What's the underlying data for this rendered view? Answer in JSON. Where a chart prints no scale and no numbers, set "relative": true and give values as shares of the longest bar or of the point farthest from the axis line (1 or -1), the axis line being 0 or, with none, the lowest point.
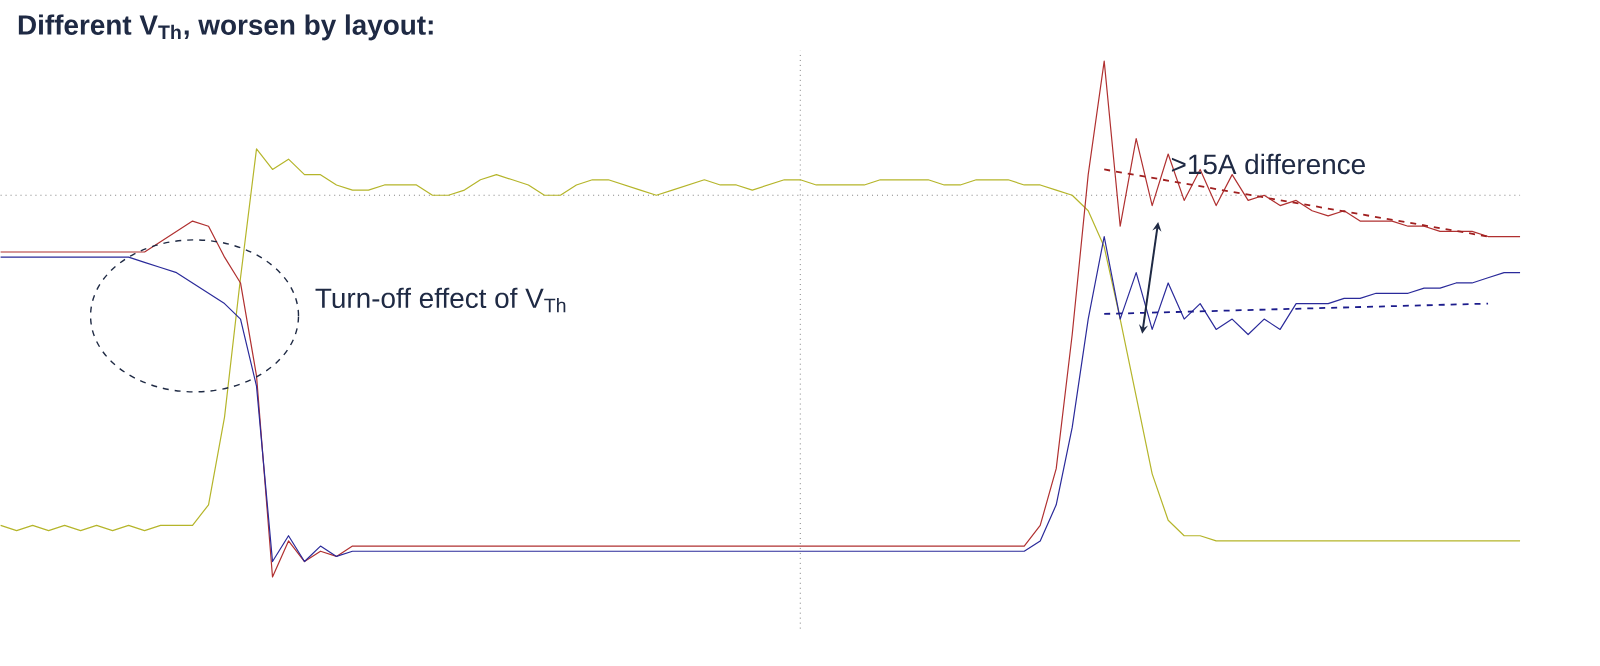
{
  "chart_data": {
    "type": "line",
    "relative": true,
    "title": "Different V$_{Th}$, worsen by layout:",
    "annotations": [
      "Turn-off effect of V$_{Th}$",
      ">15A difference"
    ],
    "categories": [
      null,
      null,
      null,
      null,
      null,
      null,
      null,
      null,
      null,
      null,
      null,
      null,
      null,
      null,
      null,
      null,
      null,
      null,
      null,
      null,
      null,
      null,
      null,
      null,
      null,
      null,
      null,
      null,
      null,
      null,
      null,
      null,
      null,
      null,
      null,
      null,
      null,
      null,
      null,
      null,
      null,
      null,
      null,
      null,
      null,
      null,
      null,
      null,
      null,
      null,
      null,
      null,
      null,
      null,
      null,
      null,
      null,
      null,
      null,
      null,
      null,
      null,
      null,
      null,
      null,
      null,
      null,
      null,
      null,
      null,
      null,
      null,
      null,
      null,
      null,
      null,
      null,
      null,
      null,
      null,
      null,
      null,
      null,
      null,
      null,
      null,
      null,
      null,
      null,
      null,
      null,
      null,
      null,
      null,
      null,
      null
    ],
    "series": [
      {
        "color": "#b5b52a",
        "values": [
          0.1,
          0.09,
          0.1,
          0.09,
          0.1,
          0.09,
          0.1,
          0.09,
          0.1,
          0.09,
          0.1,
          0.1,
          0.1,
          0.14,
          0.31,
          0.58,
          0.83,
          0.79,
          0.81,
          0.78,
          0.78,
          0.76,
          0.75,
          0.75,
          0.76,
          0.76,
          0.76,
          0.74,
          0.74,
          0.75,
          0.77,
          0.78,
          0.77,
          0.76,
          0.74,
          0.74,
          0.76,
          0.77,
          0.77,
          0.76,
          0.75,
          0.74,
          0.75,
          0.76,
          0.77,
          0.76,
          0.76,
          0.75,
          0.76,
          0.77,
          0.77,
          0.76,
          0.76,
          0.76,
          0.76,
          0.77,
          0.77,
          0.77,
          0.77,
          0.76,
          0.76,
          0.77,
          0.77,
          0.77,
          0.76,
          0.76,
          0.75,
          0.74,
          0.71,
          0.64,
          0.5,
          0.35,
          0.2,
          0.11,
          0.08,
          0.08,
          0.07,
          0.07,
          0.07,
          0.07,
          0.07,
          0.07,
          0.07,
          0.07,
          0.07,
          0.07,
          0.07,
          0.07,
          0.07,
          0.07,
          0.07,
          0.07,
          0.07,
          0.07,
          0.07,
          0.07
        ]
      },
      {
        "color": "#b03030",
        "values": [
          0.63,
          0.63,
          0.63,
          0.63,
          0.63,
          0.63,
          0.63,
          0.63,
          0.63,
          0.63,
          0.65,
          0.67,
          0.69,
          0.68,
          0.62,
          0.57,
          0.39,
          0.0,
          0.07,
          0.03,
          0.05,
          0.04,
          0.06,
          0.06,
          0.06,
          0.06,
          0.06,
          0.06,
          0.06,
          0.06,
          0.06,
          0.06,
          0.06,
          0.06,
          0.06,
          0.06,
          0.06,
          0.06,
          0.06,
          0.06,
          0.06,
          0.06,
          0.06,
          0.06,
          0.06,
          0.06,
          0.06,
          0.06,
          0.06,
          0.06,
          0.06,
          0.06,
          0.06,
          0.06,
          0.06,
          0.06,
          0.06,
          0.06,
          0.06,
          0.06,
          0.06,
          0.06,
          0.06,
          0.06,
          0.06,
          0.1,
          0.21,
          0.47,
          0.78,
          1.0,
          0.68,
          0.85,
          0.72,
          0.82,
          0.73,
          0.79,
          0.72,
          0.78,
          0.73,
          0.74,
          0.72,
          0.73,
          0.71,
          0.7,
          0.71,
          0.69,
          0.69,
          0.69,
          0.68,
          0.68,
          0.67,
          0.67,
          0.67,
          0.66,
          0.66,
          0.66
        ]
      },
      {
        "color": "#2a2a9a",
        "values": [
          0.62,
          0.62,
          0.62,
          0.62,
          0.62,
          0.62,
          0.62,
          0.62,
          0.62,
          0.61,
          0.6,
          0.59,
          0.57,
          0.55,
          0.53,
          0.5,
          0.37,
          0.03,
          0.08,
          0.03,
          0.06,
          0.04,
          0.05,
          0.05,
          0.05,
          0.05,
          0.05,
          0.05,
          0.05,
          0.05,
          0.05,
          0.05,
          0.05,
          0.05,
          0.05,
          0.05,
          0.05,
          0.05,
          0.05,
          0.05,
          0.05,
          0.05,
          0.05,
          0.05,
          0.05,
          0.05,
          0.05,
          0.05,
          0.05,
          0.05,
          0.05,
          0.05,
          0.05,
          0.05,
          0.05,
          0.05,
          0.05,
          0.05,
          0.05,
          0.05,
          0.05,
          0.05,
          0.05,
          0.05,
          0.05,
          0.07,
          0.14,
          0.29,
          0.5,
          0.66,
          0.5,
          0.59,
          0.48,
          0.57,
          0.5,
          0.53,
          0.48,
          0.5,
          0.47,
          0.5,
          0.48,
          0.53,
          0.53,
          0.53,
          0.54,
          0.54,
          0.55,
          0.55,
          0.55,
          0.56,
          0.56,
          0.57,
          0.57,
          0.58,
          0.59,
          0.59
        ]
      },
      {
        "type": "line",
        "color": "#a02020",
        "line_style": "dashed",
        "values": [
          null,
          null,
          null,
          null,
          null,
          null,
          null,
          null,
          null,
          null,
          null,
          null,
          null,
          null,
          null,
          null,
          null,
          null,
          null,
          null,
          null,
          null,
          null,
          null,
          null,
          null,
          null,
          null,
          null,
          null,
          null,
          null,
          null,
          null,
          null,
          null,
          null,
          null,
          null,
          null,
          null,
          null,
          null,
          null,
          null,
          null,
          null,
          null,
          null,
          null,
          null,
          null,
          null,
          null,
          null,
          null,
          null,
          null,
          null,
          null,
          null,
          null,
          null,
          null,
          null,
          null,
          null,
          null,
          null,
          0.79,
          null,
          null,
          null,
          null,
          null,
          null,
          null,
          null,
          null,
          null,
          null,
          null,
          null,
          null,
          null,
          null,
          null,
          null,
          null,
          null,
          null,
          null,
          null,
          0.66,
          null,
          null
        ]
      },
      {
        "type": "line",
        "color": "#1c1c8c",
        "line_style": "dashed",
        "values": [
          null,
          null,
          null,
          null,
          null,
          null,
          null,
          null,
          null,
          null,
          null,
          null,
          null,
          null,
          null,
          null,
          null,
          null,
          null,
          null,
          null,
          null,
          null,
          null,
          null,
          null,
          null,
          null,
          null,
          null,
          null,
          null,
          null,
          null,
          null,
          null,
          null,
          null,
          null,
          null,
          null,
          null,
          null,
          null,
          null,
          null,
          null,
          null,
          null,
          null,
          null,
          null,
          null,
          null,
          null,
          null,
          null,
          null,
          null,
          null,
          null,
          null,
          null,
          null,
          null,
          null,
          null,
          null,
          null,
          0.51,
          null,
          null,
          null,
          null,
          null,
          null,
          null,
          null,
          null,
          null,
          null,
          null,
          null,
          null,
          null,
          null,
          null,
          null,
          null,
          null,
          null,
          null,
          null,
          0.53,
          null,
          null
        ]
      }
    ],
    "ref_lines": [
      {
        "axis": "y",
        "value": 0.74,
        "color": "#808080",
        "line_style": "dotted"
      }
    ]
  }
}
